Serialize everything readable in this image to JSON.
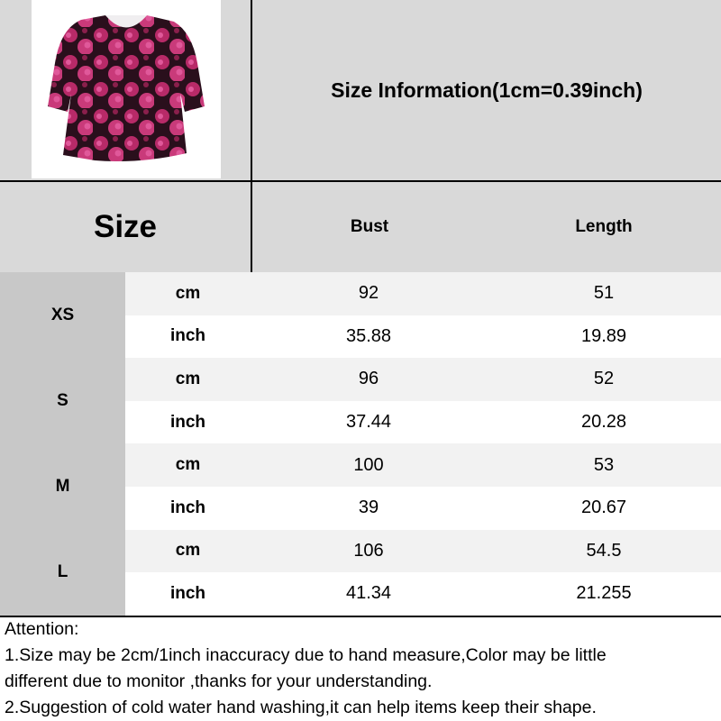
{
  "title": "Size Information(1cm=0.39inch)",
  "product_image": {
    "alt": "pink and black floral puff-sleeve blouse",
    "colors": {
      "base": "#2a0f1c",
      "flower": "#c2306f",
      "highlight": "#e0589a"
    }
  },
  "table": {
    "size_header": "Size",
    "columns": [
      "Bust",
      "Length"
    ],
    "colors": {
      "header": "#d9d9d9",
      "size_cell": "#c8c8c8",
      "cm_row": "#f2f2f2",
      "inch_row": "#ffffff"
    },
    "rows": [
      {
        "size": "XS",
        "cm": {
          "unit": "cm",
          "values": [
            "92",
            "51"
          ]
        },
        "inch": {
          "unit": "inch",
          "values": [
            "35.88",
            "19.89"
          ]
        }
      },
      {
        "size": "S",
        "cm": {
          "unit": "cm",
          "values": [
            "96",
            "52"
          ]
        },
        "inch": {
          "unit": "inch",
          "values": [
            "37.44",
            "20.28"
          ]
        }
      },
      {
        "size": "M",
        "cm": {
          "unit": "cm",
          "values": [
            "100",
            "53"
          ]
        },
        "inch": {
          "unit": "inch",
          "values": [
            "39",
            "20.67"
          ]
        }
      },
      {
        "size": "L",
        "cm": {
          "unit": "cm",
          "values": [
            "106",
            "54.5"
          ]
        },
        "inch": {
          "unit": "inch",
          "values": [
            "41.34",
            "21.255"
          ]
        }
      }
    ]
  },
  "attention": {
    "heading": "Attention:",
    "lines": [
      "1.Size may be 2cm/1inch inaccuracy due to hand measure,Color may be little",
      "different due to monitor ,thanks for your understanding.",
      "2.Suggestion of cold water hand washing,it can help items keep their shape."
    ]
  }
}
